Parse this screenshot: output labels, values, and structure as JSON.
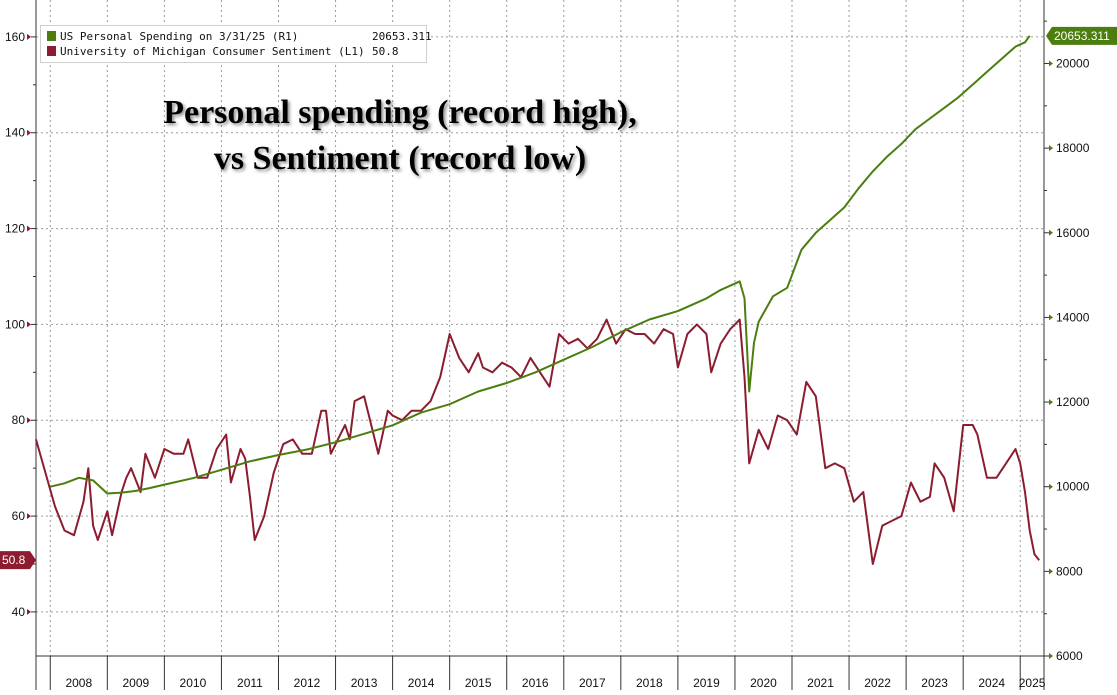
{
  "chart_data": {
    "type": "line",
    "title_lines": [
      "Personal spending (record high),",
      "vs Sentiment (record low)"
    ],
    "x_tick_labels": [
      "2008",
      "2009",
      "2010",
      "2011",
      "2012",
      "2013",
      "2014",
      "2015",
      "2016",
      "2017",
      "2018",
      "2019",
      "2020",
      "2021",
      "2022",
      "2023",
      "2024",
      "2025"
    ],
    "xlim": [
      "2007-10",
      "2025-06"
    ],
    "left_axis": {
      "ticks": [
        40,
        60,
        80,
        100,
        120,
        140,
        160
      ],
      "ylim": [
        30.8,
        167.7
      ]
    },
    "right_axis": {
      "ticks": [
        6000,
        8000,
        10000,
        12000,
        14000,
        16000,
        18000,
        20000
      ],
      "ylim": [
        6000,
        21500
      ]
    },
    "grid": true,
    "legend_position": "top-left",
    "colors": {
      "spending": "#4b7d0f",
      "sentiment": "#8c1c2f",
      "grid": "#9a9a9a"
    },
    "series": [
      {
        "name": "US Personal Spending on 3/31/25 (R1)",
        "last_value_label": "20653.311",
        "axis": "right",
        "points": [
          [
            "2008-01",
            10000
          ],
          [
            "2008-04",
            10080
          ],
          [
            "2008-07",
            10210
          ],
          [
            "2008-10",
            10150
          ],
          [
            "2009-01",
            9840
          ],
          [
            "2009-04",
            9860
          ],
          [
            "2009-07",
            9900
          ],
          [
            "2009-10",
            9970
          ],
          [
            "2010-01",
            10050
          ],
          [
            "2010-07",
            10200
          ],
          [
            "2011-01",
            10400
          ],
          [
            "2011-07",
            10600
          ],
          [
            "2012-01",
            10750
          ],
          [
            "2012-07",
            10880
          ],
          [
            "2013-01",
            11050
          ],
          [
            "2013-07",
            11250
          ],
          [
            "2014-01",
            11450
          ],
          [
            "2014-07",
            11750
          ],
          [
            "2015-01",
            11950
          ],
          [
            "2015-07",
            12250
          ],
          [
            "2016-01",
            12450
          ],
          [
            "2016-07",
            12700
          ],
          [
            "2017-01",
            13000
          ],
          [
            "2017-07",
            13300
          ],
          [
            "2018-01",
            13650
          ],
          [
            "2018-07",
            13950
          ],
          [
            "2019-01",
            14150
          ],
          [
            "2019-07",
            14450
          ],
          [
            "2019-10",
            14650
          ],
          [
            "2020-02",
            14850
          ],
          [
            "2020-03",
            14450
          ],
          [
            "2020-04",
            12250
          ],
          [
            "2020-05",
            13400
          ],
          [
            "2020-06",
            13900
          ],
          [
            "2020-09",
            14500
          ],
          [
            "2020-12",
            14700
          ],
          [
            "2021-03",
            15600
          ],
          [
            "2021-06",
            16000
          ],
          [
            "2021-09",
            16300
          ],
          [
            "2021-12",
            16600
          ],
          [
            "2022-03",
            17050
          ],
          [
            "2022-06",
            17450
          ],
          [
            "2022-09",
            17800
          ],
          [
            "2022-12",
            18100
          ],
          [
            "2023-03",
            18450
          ],
          [
            "2023-06",
            18700
          ],
          [
            "2023-09",
            18950
          ],
          [
            "2023-12",
            19200
          ],
          [
            "2024-03",
            19500
          ],
          [
            "2024-06",
            19800
          ],
          [
            "2024-09",
            20100
          ],
          [
            "2024-12",
            20400
          ],
          [
            "2025-02",
            20500
          ],
          [
            "2025-03",
            20653.311
          ]
        ]
      },
      {
        "name": "University of Michigan Consumer Sentiment (L1)",
        "last_value_label": "50.8",
        "axis": "left",
        "points": [
          [
            "2007-10",
            76
          ],
          [
            "2007-12",
            69
          ],
          [
            "2008-02",
            62
          ],
          [
            "2008-04",
            57
          ],
          [
            "2008-06",
            56
          ],
          [
            "2008-08",
            63
          ],
          [
            "2008-09",
            70
          ],
          [
            "2008-10",
            58
          ],
          [
            "2008-11",
            55
          ],
          [
            "2009-01",
            61
          ],
          [
            "2009-02",
            56
          ],
          [
            "2009-04",
            65
          ],
          [
            "2009-05",
            68
          ],
          [
            "2009-06",
            70
          ],
          [
            "2009-08",
            65
          ],
          [
            "2009-09",
            73
          ],
          [
            "2009-11",
            68
          ],
          [
            "2010-01",
            74
          ],
          [
            "2010-03",
            73
          ],
          [
            "2010-05",
            73
          ],
          [
            "2010-06",
            76
          ],
          [
            "2010-08",
            68
          ],
          [
            "2010-10",
            68
          ],
          [
            "2010-12",
            74
          ],
          [
            "2011-02",
            77
          ],
          [
            "2011-03",
            67
          ],
          [
            "2011-05",
            74
          ],
          [
            "2011-06",
            72
          ],
          [
            "2011-07",
            64
          ],
          [
            "2011-08",
            55
          ],
          [
            "2011-10",
            60
          ],
          [
            "2011-12",
            69
          ],
          [
            "2012-02",
            75
          ],
          [
            "2012-04",
            76
          ],
          [
            "2012-06",
            73
          ],
          [
            "2012-08",
            73
          ],
          [
            "2012-10",
            82
          ],
          [
            "2012-11",
            82
          ],
          [
            "2012-12",
            73
          ],
          [
            "2013-02",
            77
          ],
          [
            "2013-03",
            79
          ],
          [
            "2013-04",
            76
          ],
          [
            "2013-05",
            84
          ],
          [
            "2013-07",
            85
          ],
          [
            "2013-09",
            77
          ],
          [
            "2013-10",
            73
          ],
          [
            "2013-12",
            82
          ],
          [
            "2014-01",
            81
          ],
          [
            "2014-03",
            80
          ],
          [
            "2014-05",
            82
          ],
          [
            "2014-07",
            82
          ],
          [
            "2014-09",
            84
          ],
          [
            "2014-11",
            89
          ],
          [
            "2015-01",
            98
          ],
          [
            "2015-03",
            93
          ],
          [
            "2015-05",
            90
          ],
          [
            "2015-07",
            94
          ],
          [
            "2015-08",
            91
          ],
          [
            "2015-10",
            90
          ],
          [
            "2015-12",
            92
          ],
          [
            "2016-02",
            91
          ],
          [
            "2016-04",
            89
          ],
          [
            "2016-06",
            93
          ],
          [
            "2016-08",
            90
          ],
          [
            "2016-10",
            87
          ],
          [
            "2016-12",
            98
          ],
          [
            "2017-02",
            96
          ],
          [
            "2017-04",
            97
          ],
          [
            "2017-06",
            95
          ],
          [
            "2017-08",
            97
          ],
          [
            "2017-10",
            101
          ],
          [
            "2017-12",
            96
          ],
          [
            "2018-02",
            99
          ],
          [
            "2018-04",
            98
          ],
          [
            "2018-06",
            98
          ],
          [
            "2018-08",
            96
          ],
          [
            "2018-10",
            99
          ],
          [
            "2018-12",
            98
          ],
          [
            "2019-01",
            91
          ],
          [
            "2019-03",
            98
          ],
          [
            "2019-05",
            100
          ],
          [
            "2019-07",
            98
          ],
          [
            "2019-08",
            90
          ],
          [
            "2019-10",
            96
          ],
          [
            "2019-12",
            99
          ],
          [
            "2020-02",
            101
          ],
          [
            "2020-03",
            89
          ],
          [
            "2020-04",
            71
          ],
          [
            "2020-06",
            78
          ],
          [
            "2020-08",
            74
          ],
          [
            "2020-10",
            81
          ],
          [
            "2020-12",
            80
          ],
          [
            "2021-02",
            77
          ],
          [
            "2021-04",
            88
          ],
          [
            "2021-06",
            85
          ],
          [
            "2021-08",
            70
          ],
          [
            "2021-10",
            71
          ],
          [
            "2021-12",
            70
          ],
          [
            "2022-02",
            63
          ],
          [
            "2022-04",
            65
          ],
          [
            "2022-06",
            50
          ],
          [
            "2022-08",
            58
          ],
          [
            "2022-10",
            59
          ],
          [
            "2022-12",
            60
          ],
          [
            "2023-02",
            67
          ],
          [
            "2023-04",
            63
          ],
          [
            "2023-06",
            64
          ],
          [
            "2023-07",
            71
          ],
          [
            "2023-09",
            68
          ],
          [
            "2023-11",
            61
          ],
          [
            "2024-01",
            79
          ],
          [
            "2024-03",
            79
          ],
          [
            "2024-04",
            77
          ],
          [
            "2024-06",
            68
          ],
          [
            "2024-08",
            68
          ],
          [
            "2024-10",
            71
          ],
          [
            "2024-12",
            74
          ],
          [
            "2025-01",
            71
          ],
          [
            "2025-02",
            65
          ],
          [
            "2025-03",
            57
          ],
          [
            "2025-04",
            52
          ],
          [
            "2025-05",
            50.8
          ]
        ]
      }
    ]
  }
}
